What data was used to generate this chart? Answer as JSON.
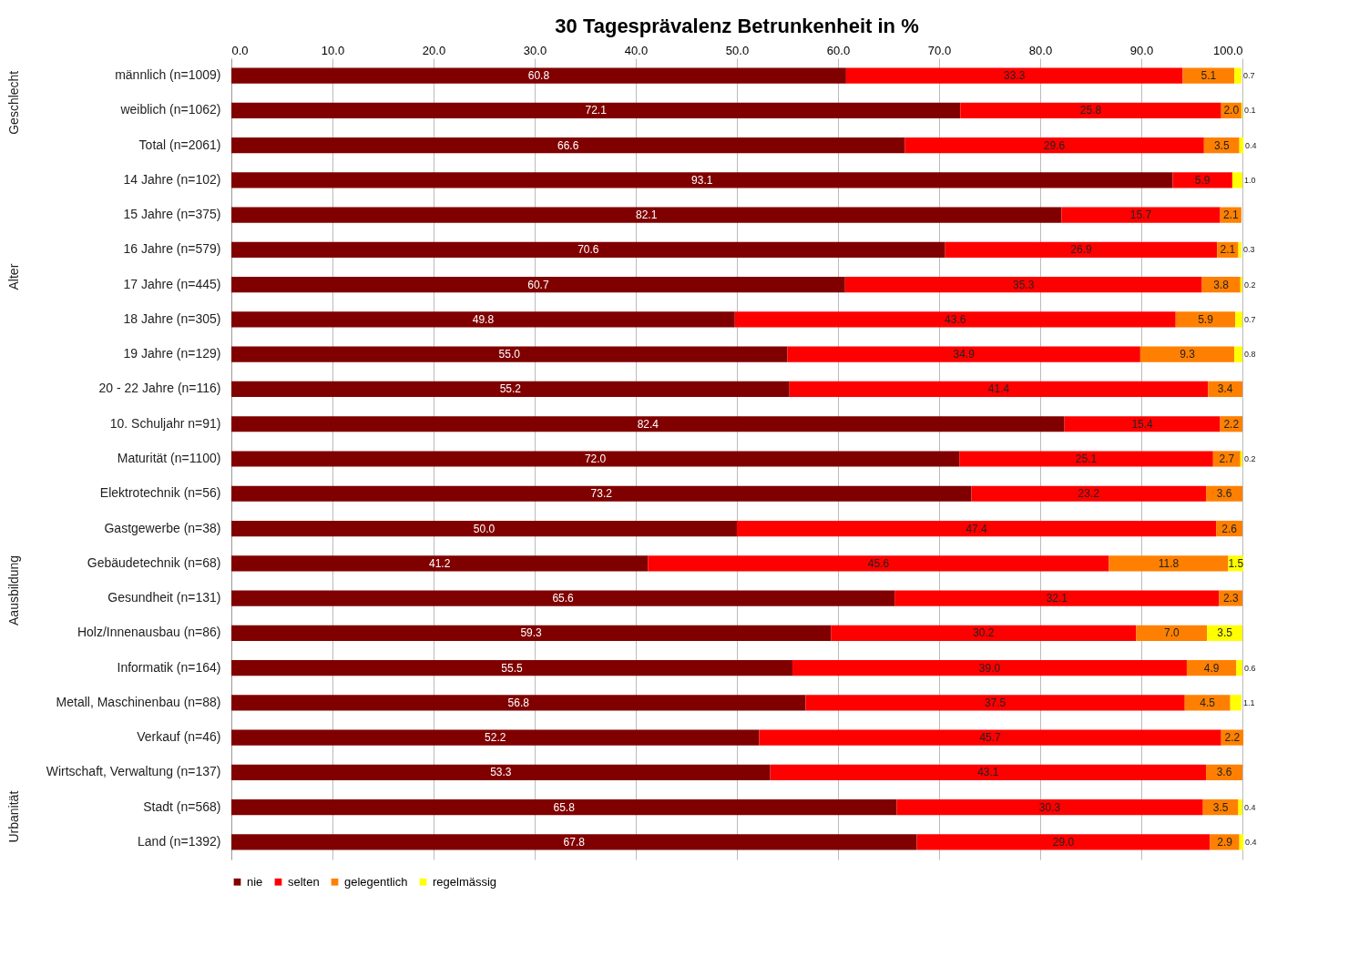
{
  "chart_data": {
    "type": "bar",
    "orientation": "horizontal",
    "stacked": true,
    "title": "30 Tagesprävalenz Betrunkenheit in %",
    "categories": [
      "männlich (n=1009)",
      "weiblich (n=1062)",
      "Total (n=2061)",
      "14 Jahre (n=102)",
      "15 Jahre (n=375)",
      "16 Jahre (n=579)",
      "17 Jahre (n=445)",
      "18 Jahre (n=305)",
      "19 Jahre (n=129)",
      "20 - 22 Jahre (n=116)",
      "10. Schuljahr n=91)",
      "Maturität (n=1100)",
      "Elektrotechnik (n=56)",
      "Gastgewerbe (n=38)",
      "Gebäudetechnik (n=68)",
      "Gesundheit (n=131)",
      "Holz/Innenausbau (n=86)",
      "Informatik (n=164)",
      "Metall, Maschinenbau (n=88)",
      "Verkauf (n=46)",
      "Wirtschaft, Verwaltung (n=137)",
      "Stadt (n=568)",
      "Land (n=1392)"
    ],
    "series": [
      {
        "name": "nie",
        "color": "#800000",
        "values": [
          60.8,
          72.1,
          66.6,
          93.1,
          82.1,
          70.6,
          60.7,
          49.8,
          55.0,
          55.2,
          82.4,
          72.0,
          73.2,
          50.0,
          41.2,
          65.6,
          59.3,
          55.5,
          56.8,
          52.2,
          53.3,
          65.8,
          67.8
        ],
        "value_labels": [
          "60.8",
          "72.1",
          "66.6",
          "93.1",
          "82.1",
          "70.6",
          "60.7",
          "49.8",
          "55.0",
          "55.2",
          "82.4",
          "72.0",
          "73.2",
          "50.0",
          "41.2",
          "65.6",
          "59.3",
          "55.5",
          "56.8",
          "52.2",
          "53.3",
          "65.8",
          "67.8"
        ]
      },
      {
        "name": "selten",
        "color": "#ff0000",
        "values": [
          33.3,
          25.8,
          29.6,
          5.9,
          15.7,
          26.9,
          35.3,
          43.6,
          34.9,
          41.4,
          15.4,
          25.1,
          23.2,
          47.4,
          45.6,
          32.1,
          30.2,
          39.0,
          37.5,
          45.7,
          43.1,
          30.3,
          29.0
        ],
        "value_labels": [
          "33.3",
          "25.8",
          "29.6",
          "5.9",
          "15.7",
          "26.9",
          "35.3",
          "43.6",
          "34.9",
          "41.4",
          "15.4",
          "25.1",
          "23.2",
          "47.4",
          "45.6",
          "32.1",
          "30.2",
          "39.0",
          "37.5",
          "45.7",
          "43.1",
          "30.3",
          "29.0"
        ]
      },
      {
        "name": "gelegentlich",
        "color": "#ff8000",
        "values": [
          5.1,
          2.0,
          3.5,
          null,
          2.1,
          2.1,
          3.8,
          5.9,
          9.3,
          3.4,
          2.2,
          2.7,
          3.6,
          2.6,
          11.8,
          2.3,
          7.0,
          4.9,
          4.5,
          2.2,
          3.6,
          3.5,
          2.9
        ],
        "value_labels": [
          "5.1",
          "2.0",
          "3.5",
          null,
          "2.1",
          "2.1",
          "3.8",
          "5.9",
          "9.3",
          "3.4",
          "2.2",
          "2.7",
          "3.6",
          "2.6",
          "11.8",
          "2.3",
          "7.0",
          "4.9",
          "4.5",
          "2.2",
          "3.6",
          "3.5",
          "2.9"
        ]
      },
      {
        "name": "regelmässig",
        "color": "#ffff00",
        "values": [
          0.7,
          0.1,
          0.4,
          1.0,
          null,
          0.3,
          0.2,
          0.7,
          0.8,
          null,
          null,
          0.2,
          null,
          null,
          1.5,
          null,
          3.5,
          0.6,
          1.1,
          null,
          null,
          0.4,
          0.4
        ],
        "value_labels": [
          "0.7",
          "0.1",
          "0.4",
          "1.0",
          null,
          "0.3",
          "0.2",
          "0.7",
          "0.8",
          null,
          null,
          "0.2",
          null,
          null,
          "1.5",
          null,
          "3.5",
          "0.6",
          "1.1",
          null,
          null,
          "0.4",
          "0.4"
        ]
      }
    ],
    "xlim": [
      0,
      100
    ],
    "xticks": [
      {
        "value": 0,
        "label": "0.0"
      },
      {
        "value": 10,
        "label": "10.0"
      },
      {
        "value": 20,
        "label": "20.0"
      },
      {
        "value": 30,
        "label": "30.0"
      },
      {
        "value": 40,
        "label": "40.0"
      },
      {
        "value": 50,
        "label": "50.0"
      },
      {
        "value": 60,
        "label": "60.0"
      },
      {
        "value": 70,
        "label": "70.0"
      },
      {
        "value": 80,
        "label": "80.0"
      },
      {
        "value": 90,
        "label": "90.0"
      },
      {
        "value": 100,
        "label": "100.0"
      }
    ],
    "annotations": [
      "Geschlecht",
      "Alter",
      "Aausbildung",
      "Urbanität"
    ],
    "grid": "x",
    "legend": "bottom"
  }
}
